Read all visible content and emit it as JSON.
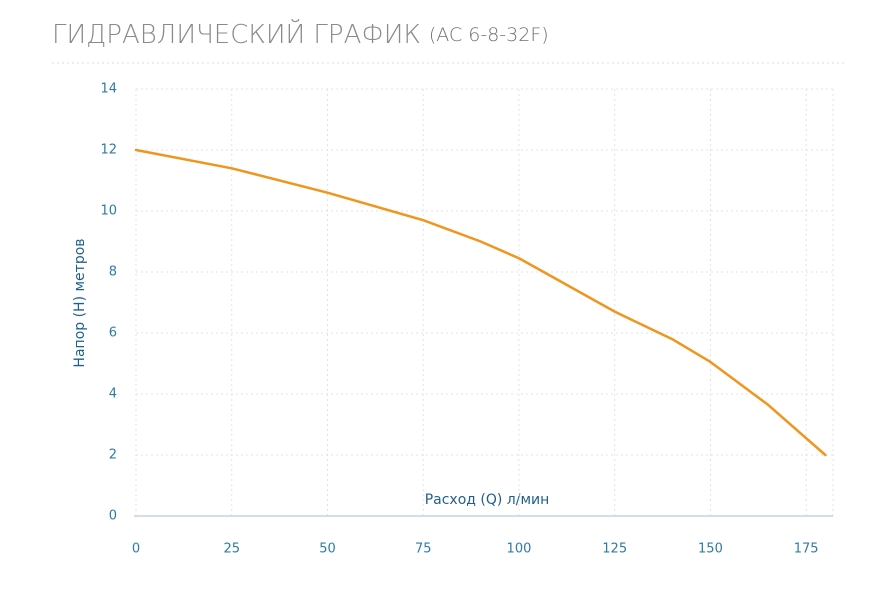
{
  "chart_data": {
    "type": "line",
    "title": "ГИДРАВЛИЧЕСКИЙ ГРАФИК",
    "subtitle": "(AC 6-8-32F)",
    "x_label": "Расход (Q) л/мин",
    "y_label": "Напор (H) метров",
    "x": [
      0,
      25,
      50,
      75,
      90,
      100,
      125,
      140,
      150,
      165,
      180
    ],
    "series": [
      {
        "color": "#f0951e",
        "values": [
          12,
          11.4,
          10.6,
          9.7,
          9.0,
          8.45,
          6.7,
          5.8,
          5.05,
          3.65,
          2.0
        ]
      }
    ],
    "xlim": [
      0,
      182
    ],
    "xticks": [
      0,
      25,
      50,
      75,
      100,
      125,
      150,
      175
    ],
    "ylim": [
      0,
      14
    ],
    "yticks": [
      0,
      2,
      4,
      6,
      8,
      10,
      12,
      14
    ],
    "grid": true
  }
}
